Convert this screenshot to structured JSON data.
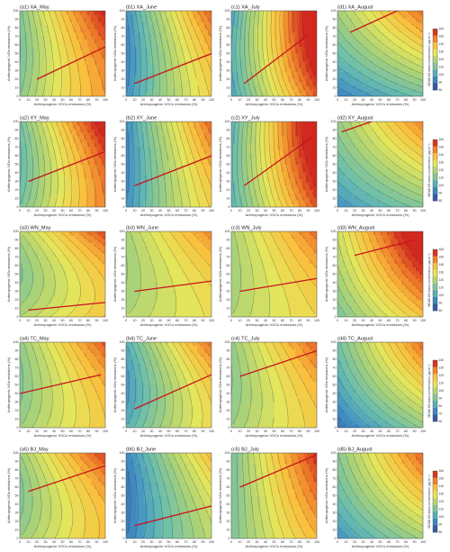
{
  "chart_data": {
    "type": "contour",
    "layout": {
      "rows": 5,
      "cols": 4
    },
    "xlabel": "Anthropogenic VOCs emissions (%)",
    "ylabel": "Anthropogenic NOx emissions (%)",
    "xlim": [
      0,
      100
    ],
    "ylim": [
      0,
      100
    ],
    "ticks": [
      "0",
      "10",
      "20",
      "30",
      "40",
      "50",
      "60",
      "70",
      "80",
      "90",
      "100"
    ],
    "colorbar": {
      "label": "MDA8 O3 mass concentration (μg m⁻³)",
      "ticks": [
        [
          "160",
          "150",
          "140",
          "130",
          "120",
          "110",
          "100",
          "90",
          "80"
        ],
        [
          "160",
          "150",
          "140",
          "130",
          "120",
          "110",
          "100",
          "90",
          "80"
        ],
        [
          "160",
          "150",
          "140",
          "130",
          "120",
          "110",
          "100",
          "90",
          "80"
        ],
        [
          "140",
          "130",
          "120",
          "110",
          "100",
          "90",
          "80",
          "70",
          "60"
        ],
        [
          "160",
          "150",
          "140",
          "130",
          "120",
          "110",
          "100",
          "90",
          "80"
        ]
      ]
    },
    "panels": [
      {
        "title": "(a1) XA_May",
        "col": 0,
        "row": 0,
        "base": 105,
        "gx": 60,
        "gy": -20,
        "hx": 0.25,
        "hy": 0.9,
        "line": [
          20,
          20,
          100,
          58
        ]
      },
      {
        "title": "(b1) XA_June",
        "col": 1,
        "row": 0,
        "base": 80,
        "gx": 70,
        "gy": -15,
        "hx": 0.2,
        "hy": 1,
        "line": [
          10,
          15,
          100,
          50
        ]
      },
      {
        "title": "(c1) XA_July",
        "col": 2,
        "row": 0,
        "base": 85,
        "gx": 85,
        "gy": 20,
        "hx": 0.1,
        "hy": 1,
        "line": [
          15,
          15,
          90,
          72
        ]
      },
      {
        "title": "(d1) XA_August",
        "col": 3,
        "row": 0,
        "base": 75,
        "gx": 25,
        "gy": 45,
        "hx": 0.1,
        "hy": 0.2,
        "line": [
          15,
          75,
          70,
          100
        ]
      },
      {
        "title": "(a2) XY_May",
        "col": 0,
        "row": 1,
        "base": 100,
        "gx": 65,
        "gy": -25,
        "hx": 0.15,
        "hy": 0.95,
        "line": [
          10,
          30,
          100,
          65
        ]
      },
      {
        "title": "(b2) XY_June",
        "col": 1,
        "row": 1,
        "base": 80,
        "gx": 70,
        "gy": -10,
        "hx": 0.2,
        "hy": 0.9,
        "line": [
          10,
          25,
          100,
          60
        ]
      },
      {
        "title": "(c2) XY_July",
        "col": 2,
        "row": 1,
        "base": 90,
        "gx": 80,
        "gy": 15,
        "hx": 0.1,
        "hy": 1,
        "line": [
          15,
          25,
          95,
          82
        ]
      },
      {
        "title": "(d2) XY_August",
        "col": 3,
        "row": 1,
        "base": 80,
        "gx": 25,
        "gy": 35,
        "hx": 0.1,
        "hy": 0.2,
        "line": [
          5,
          88,
          40,
          100
        ]
      },
      {
        "title": "(a3) WN_May",
        "col": 0,
        "row": 2,
        "base": 115,
        "gx": 30,
        "gy": -45,
        "hx": 0.15,
        "hy": 1,
        "line": [
          10,
          8,
          100,
          17
        ]
      },
      {
        "title": "(b3) WN_June",
        "col": 1,
        "row": 2,
        "base": 115,
        "gx": 20,
        "gy": -20,
        "hx": 0.2,
        "hy": 0.9,
        "line": [
          10,
          30,
          100,
          42
        ]
      },
      {
        "title": "(c3) WN_July",
        "col": 2,
        "row": 2,
        "base": 115,
        "gx": 25,
        "gy": -15,
        "hx": 0.2,
        "hy": 0.9,
        "line": [
          10,
          30,
          100,
          45
        ]
      },
      {
        "title": "(d3) WN_August",
        "col": 3,
        "row": 2,
        "base": 100,
        "gx": 45,
        "gy": 30,
        "hx": 0.1,
        "hy": 0.3,
        "line": [
          20,
          72,
          90,
          90
        ]
      },
      {
        "title": "(a4) TC_May",
        "col": 0,
        "row": 3,
        "base": 110,
        "gx": 35,
        "gy": -25,
        "hx": 0.15,
        "hy": 0.9,
        "line": [
          0,
          40,
          95,
          62
        ]
      },
      {
        "title": "(b4) TC_June",
        "col": 1,
        "row": 3,
        "base": 90,
        "gx": 55,
        "gy": -30,
        "hx": 0.2,
        "hy": 1,
        "line": [
          10,
          22,
          100,
          62
        ]
      },
      {
        "title": "(c4) TC_July",
        "col": 2,
        "row": 3,
        "base": 110,
        "gx": 35,
        "gy": -20,
        "hx": 0.2,
        "hy": 0.9,
        "line": [
          10,
          60,
          100,
          90
        ]
      },
      {
        "title": "(d4) TC_August",
        "col": 3,
        "row": 3,
        "base": 70,
        "gx": 40,
        "gy": 40,
        "hx": 0.1,
        "hy": 0.3,
        "line": []
      },
      {
        "title": "(a5) BJ_May",
        "col": 0,
        "row": 4,
        "base": 110,
        "gx": 40,
        "gy": -30,
        "hx": 0.2,
        "hy": 1,
        "line": [
          10,
          55,
          100,
          85
        ]
      },
      {
        "title": "(b5) BJ_June",
        "col": 1,
        "row": 4,
        "base": 75,
        "gx": 50,
        "gy": -15,
        "hx": 0.15,
        "hy": 1.1,
        "line": [
          10,
          15,
          100,
          38
        ]
      },
      {
        "title": "(c5) BJ_July",
        "col": 2,
        "row": 4,
        "base": 100,
        "gx": 55,
        "gy": 0,
        "hx": 0.2,
        "hy": 0.9,
        "line": [
          10,
          60,
          100,
          98
        ]
      },
      {
        "title": "(d5) BJ_August",
        "col": 3,
        "row": 4,
        "base": 80,
        "gx": 35,
        "gy": 35,
        "hx": 0.1,
        "hy": 0.3,
        "line": []
      }
    ],
    "color_min": 60,
    "color_max": 170,
    "contour_step": 5
  }
}
